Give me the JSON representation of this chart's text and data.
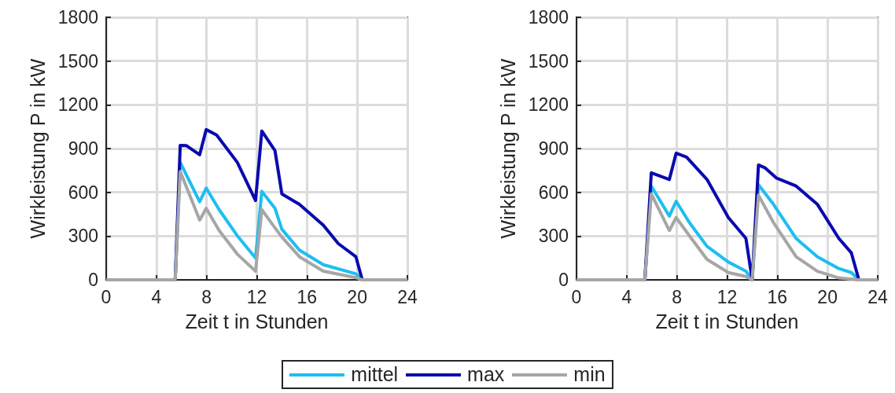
{
  "chart_data": [
    {
      "type": "line",
      "xlabel": "Zeit t in Stunden",
      "ylabel": "Wirkleistung P in kW",
      "xlim": [
        0,
        24
      ],
      "xticks": [
        0,
        4,
        8,
        12,
        16,
        20,
        24
      ],
      "ylim": [
        0,
        1800
      ],
      "yticks": [
        0,
        300,
        600,
        900,
        1200,
        1500,
        1800
      ],
      "grid": true,
      "legend": "bottom",
      "series": [
        {
          "name": "mittel",
          "color": "#1ebef0",
          "x": [
            0,
            5.5,
            5.9,
            7.45,
            7.97,
            9.0,
            10.45,
            11.9,
            12.4,
            13.45,
            14.0,
            15.4,
            17.3,
            19.9,
            20.4,
            24
          ],
          "values": [
            0,
            0,
            805,
            535,
            629,
            481,
            302,
            149,
            607,
            490,
            347,
            203,
            104,
            41,
            0,
            0
          ]
        },
        {
          "name": "max",
          "color": "#0a0aaf",
          "x": [
            0,
            5.5,
            5.9,
            6.4,
            7.45,
            7.97,
            8.8,
            10.45,
            11.9,
            12.4,
            13.45,
            14.0,
            15.4,
            17.3,
            18.5,
            19.9,
            20.4,
            24
          ],
          "values": [
            0,
            0,
            922,
            920,
            858,
            1030,
            993,
            805,
            544,
            1020,
            886,
            589,
            517,
            374,
            248,
            158,
            0,
            0
          ]
        },
        {
          "name": "min",
          "color": "#a6a6a6",
          "x": [
            0,
            5.5,
            5.9,
            7.45,
            7.97,
            9.0,
            10.45,
            11.9,
            12.4,
            13.45,
            14.0,
            15.4,
            17.3,
            19.9,
            20.4,
            24
          ],
          "values": [
            0,
            0,
            742,
            410,
            490,
            338,
            176,
            59,
            481,
            356,
            293,
            158,
            59,
            15,
            0,
            0
          ]
        }
      ]
    },
    {
      "type": "line",
      "xlabel": "Zeit t in Stunden",
      "ylabel": "Wirkleistung P in kW",
      "xlim": [
        0,
        24
      ],
      "xticks": [
        0,
        4,
        8,
        12,
        16,
        20,
        24
      ],
      "ylim": [
        0,
        1800
      ],
      "yticks": [
        0,
        300,
        600,
        900,
        1200,
        1500,
        1800
      ],
      "grid": true,
      "series": [
        {
          "color": "#1ebef0",
          "x": [
            0,
            5.45,
            5.96,
            7.4,
            7.94,
            9.0,
            10.4,
            12.1,
            13.5,
            14.0,
            14.5,
            15.7,
            17.5,
            19.2,
            20.9,
            21.9,
            22.5,
            24
          ],
          "values": [
            0,
            0,
            643,
            437,
            539,
            392,
            230,
            122,
            59,
            0,
            652,
            517,
            284,
            158,
            77,
            50,
            0,
            0
          ]
        },
        {
          "color": "#0a0aaf",
          "x": [
            0,
            5.45,
            5.96,
            7.4,
            7.94,
            8.77,
            10.4,
            12.1,
            13.5,
            14.0,
            14.5,
            15.0,
            15.95,
            17.5,
            19.2,
            20.9,
            21.9,
            22.5,
            24
          ],
          "values": [
            0,
            0,
            733,
            688,
            868,
            841,
            688,
            427,
            284,
            0,
            787,
            769,
            697,
            643,
            517,
            284,
            185,
            0,
            0
          ]
        },
        {
          "color": "#a6a6a6",
          "x": [
            0,
            5.45,
            5.96,
            7.4,
            7.94,
            9.0,
            10.4,
            12.1,
            13.5,
            14.0,
            14.5,
            15.7,
            17.5,
            19.2,
            20.9,
            22.5,
            24
          ],
          "values": [
            0,
            0,
            589,
            338,
            427,
            302,
            140,
            50,
            23,
            0,
            580,
            392,
            158,
            59,
            13,
            0,
            0
          ]
        }
      ]
    }
  ]
}
